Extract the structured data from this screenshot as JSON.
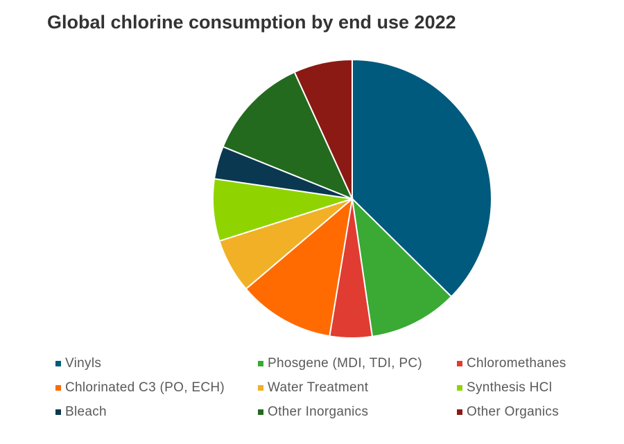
{
  "chart_data": {
    "type": "pie",
    "title": "Global chlorine consumption by end use 2022",
    "categories": [
      "Vinyls",
      "Phosgene (MDI, TDI, PC)",
      "Chloromethanes",
      "Chlorinated C3 (PO, ECH)",
      "Water Treatment",
      "Synthesis HCl",
      "Bleach",
      "Other Inorganics",
      "Other Organics"
    ],
    "values": [
      37.4,
      10.3,
      4.9,
      11.2,
      6.3,
      7.2,
      3.8,
      12.1,
      6.8
    ],
    "colors": [
      "#005a7d",
      "#3aaa35",
      "#e03c31",
      "#ff6b00",
      "#f2b026",
      "#8fd400",
      "#0a3850",
      "#236a1e",
      "#8b1a14"
    ],
    "legend": "bottom"
  }
}
